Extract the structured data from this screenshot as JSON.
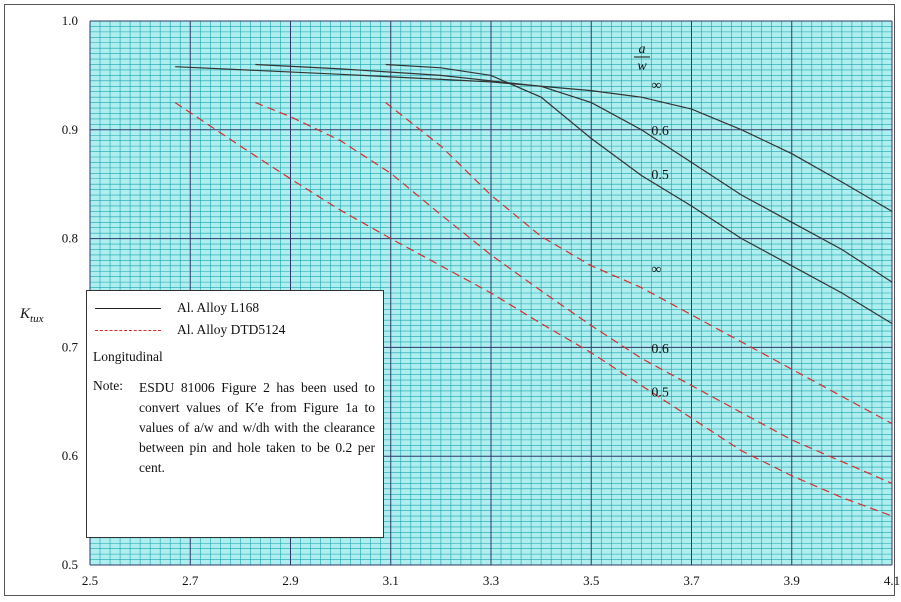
{
  "colors": {
    "plot_background": "#aeeeee",
    "minor_grid": "#1aa3b0",
    "major_grid": "#2a3a6a",
    "solid_series": "#333333",
    "dashed_series": "#d32f2f"
  },
  "chart_data": {
    "type": "line",
    "title": "",
    "xlabel": "",
    "ylabel": "K_tux",
    "ylabel_parts": {
      "main": "K",
      "sub": "tux"
    },
    "xlim": [
      2.5,
      4.1
    ],
    "ylim": [
      0.5,
      1.0
    ],
    "x_ticks": [
      "2.5",
      "2.7",
      "2.9",
      "3.1",
      "3.3",
      "3.5",
      "3.7",
      "3.9",
      "4.1"
    ],
    "y_ticks": [
      "0.5",
      "0.6",
      "0.7",
      "0.8",
      "0.9",
      "1.0"
    ],
    "grid": true,
    "parameter_label": {
      "numerator": "a",
      "denominator": "w"
    },
    "series": [
      {
        "material": "L168",
        "style": "solid",
        "a_over_w": "∞",
        "x": [
          2.67,
          3.0,
          3.3,
          3.5,
          3.6,
          3.7,
          3.8,
          3.9,
          4.0,
          4.1
        ],
        "y": [
          0.958,
          0.951,
          0.944,
          0.936,
          0.93,
          0.919,
          0.9,
          0.878,
          0.852,
          0.825
        ]
      },
      {
        "material": "L168",
        "style": "solid",
        "a_over_w": "0.6",
        "x": [
          2.83,
          3.0,
          3.2,
          3.4,
          3.5,
          3.6,
          3.7,
          3.8,
          3.9,
          4.0,
          4.1
        ],
        "y": [
          0.96,
          0.956,
          0.95,
          0.94,
          0.925,
          0.9,
          0.87,
          0.84,
          0.815,
          0.79,
          0.76
        ]
      },
      {
        "material": "L168",
        "style": "solid",
        "a_over_w": "0.5",
        "x": [
          3.09,
          3.2,
          3.3,
          3.4,
          3.5,
          3.6,
          3.7,
          3.8,
          3.9,
          4.0,
          4.1
        ],
        "y": [
          0.96,
          0.957,
          0.95,
          0.93,
          0.892,
          0.858,
          0.83,
          0.8,
          0.775,
          0.75,
          0.722
        ]
      },
      {
        "material": "DTD5124",
        "style": "dashed",
        "a_over_w": "∞",
        "x": [
          3.09,
          3.2,
          3.3,
          3.4,
          3.5,
          3.6,
          3.7,
          3.8,
          3.9,
          4.0,
          4.1
        ],
        "y": [
          0.925,
          0.885,
          0.84,
          0.802,
          0.775,
          0.755,
          0.73,
          0.705,
          0.68,
          0.655,
          0.63
        ]
      },
      {
        "material": "DTD5124",
        "style": "dashed",
        "a_over_w": "0.6",
        "x": [
          2.83,
          2.9,
          3.0,
          3.1,
          3.2,
          3.3,
          3.4,
          3.5,
          3.6,
          3.7,
          3.8,
          3.9,
          4.0,
          4.1
        ],
        "y": [
          0.925,
          0.912,
          0.89,
          0.86,
          0.822,
          0.785,
          0.752,
          0.72,
          0.69,
          0.665,
          0.64,
          0.615,
          0.595,
          0.575
        ]
      },
      {
        "material": "DTD5124",
        "style": "dashed",
        "a_over_w": "0.5",
        "x": [
          2.67,
          2.8,
          2.9,
          3.0,
          3.1,
          3.2,
          3.3,
          3.4,
          3.5,
          3.6,
          3.7,
          3.8,
          3.9,
          4.0,
          4.1
        ],
        "y": [
          0.925,
          0.885,
          0.855,
          0.826,
          0.8,
          0.775,
          0.75,
          0.722,
          0.695,
          0.665,
          0.635,
          0.605,
          0.582,
          0.562,
          0.545
        ]
      }
    ],
    "curve_labels": [
      {
        "text": "∞",
        "x": 3.62,
        "y": 0.937
      },
      {
        "text": "0.6",
        "x": 3.62,
        "y": 0.895
      },
      {
        "text": "0.5",
        "x": 3.62,
        "y": 0.855
      },
      {
        "text": "∞",
        "x": 3.62,
        "y": 0.768
      },
      {
        "text": "0.6",
        "x": 3.62,
        "y": 0.695
      },
      {
        "text": "0.5",
        "x": 3.62,
        "y": 0.655
      }
    ],
    "legend": {
      "entries": [
        {
          "style": "solid",
          "label": "Al. Alloy L168"
        },
        {
          "style": "dashed",
          "label": "Al. Alloy DTD5124"
        }
      ],
      "orientation": "Longitudinal",
      "note_label": "Note:",
      "note_text": "ESDU 81006 Figure 2 has been used to convert values of K′e from Figure 1a to values of a/w and w/dh with the clearance between pin and hole taken to be 0.2 per cent."
    }
  }
}
